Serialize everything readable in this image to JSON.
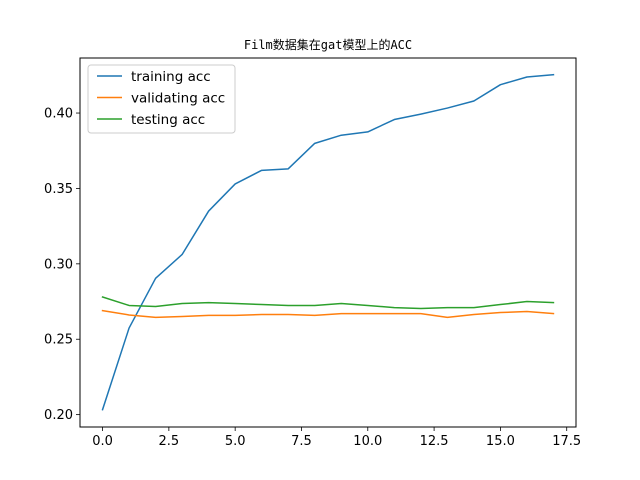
{
  "chart_data": {
    "type": "line",
    "title": "Film数据集在gat模型上的ACC",
    "xlabel": "",
    "ylabel": "",
    "x": [
      0,
      1,
      2,
      3,
      4,
      5,
      6,
      7,
      8,
      9,
      10,
      11,
      12,
      13,
      14,
      15,
      16,
      17
    ],
    "xlim": [
      -0.85,
      17.85
    ],
    "ylim": [
      0.1918,
      0.4365
    ],
    "xticks": [
      0.0,
      2.5,
      5.0,
      7.5,
      10.0,
      12.5,
      15.0,
      17.5
    ],
    "xtick_labels": [
      "0.0",
      "2.5",
      "5.0",
      "7.5",
      "10.0",
      "12.5",
      "15.0",
      "17.5"
    ],
    "yticks": [
      0.2,
      0.25,
      0.3,
      0.35,
      0.4
    ],
    "ytick_labels": [
      "0.20",
      "0.25",
      "0.30",
      "0.35",
      "0.40"
    ],
    "grid": false,
    "legend_position": "top-left",
    "series": [
      {
        "name": "training acc",
        "color": "#1f77b4",
        "values": [
          0.2033,
          0.2574,
          0.2904,
          0.3062,
          0.335,
          0.353,
          0.362,
          0.363,
          0.3799,
          0.3853,
          0.3875,
          0.3957,
          0.3993,
          0.4033,
          0.408,
          0.4188,
          0.4239,
          0.4254
        ]
      },
      {
        "name": "validating acc",
        "color": "#ff7f0e",
        "values": [
          0.269,
          0.2661,
          0.2645,
          0.2651,
          0.2658,
          0.2658,
          0.2664,
          0.2664,
          0.2658,
          0.267,
          0.267,
          0.267,
          0.267,
          0.2645,
          0.2664,
          0.2677,
          0.2684,
          0.267
        ]
      },
      {
        "name": "testing acc",
        "color": "#2ca02c",
        "values": [
          0.278,
          0.2724,
          0.2717,
          0.2737,
          0.2743,
          0.2737,
          0.273,
          0.2724,
          0.2724,
          0.2737,
          0.2724,
          0.271,
          0.2704,
          0.271,
          0.271,
          0.273,
          0.275,
          0.2743
        ]
      }
    ]
  }
}
